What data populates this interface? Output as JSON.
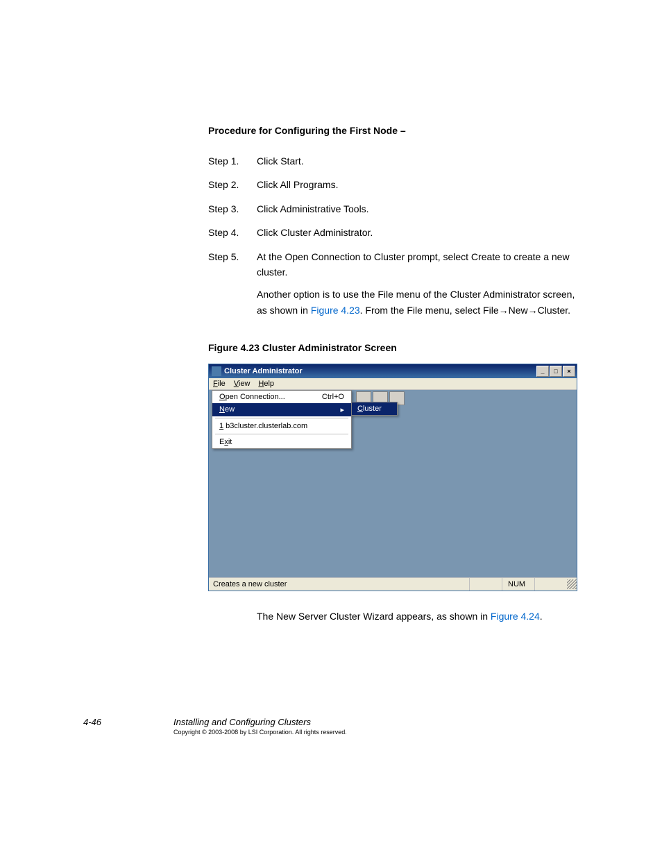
{
  "heading": "Procedure for Configuring the First Node –",
  "steps": [
    {
      "label": "Step 1.",
      "text": "Click Start."
    },
    {
      "label": "Step 2.",
      "text": "Click All Programs."
    },
    {
      "label": "Step 3.",
      "text": "Click Administrative Tools."
    },
    {
      "label": "Step 4.",
      "text": "Click Cluster Administrator."
    },
    {
      "label": "Step 5.",
      "text": "At the Open Connection to Cluster prompt, select Create to create a new cluster."
    }
  ],
  "step5_para2_pre": "Another option is to use the File menu of the Cluster Administrator screen, as shown in ",
  "step5_para2_link": "Figure 4.23",
  "step5_para2_post": ". From the File menu, select File→New→Cluster.",
  "figure_caption": "Figure 4.23   Cluster Administrator Screen",
  "window": {
    "title": "Cluster Administrator",
    "menubar": {
      "file": "File",
      "view": "View",
      "help": "Help"
    },
    "file_menu": {
      "open": "Open Connection...",
      "open_shortcut": "Ctrl+O",
      "new": "New",
      "recent": "1 b3cluster.clusterlab.com",
      "exit": "Exit"
    },
    "submenu": {
      "cluster": "Cluster"
    },
    "statusbar": {
      "text": "Creates a new cluster",
      "num": "NUM"
    }
  },
  "after_figure_pre": "The New Server Cluster Wizard appears, as shown in ",
  "after_figure_link": "Figure 4.24",
  "after_figure_post": ".",
  "footer": {
    "pagenum": "4-46",
    "title": "Installing and Configuring Clusters",
    "copyright": "Copyright © 2003-2008 by LSI Corporation. All rights reserved."
  },
  "colors": {
    "titlebar_start": "#0a246a",
    "titlebar_end": "#3a6ea5",
    "client_bg": "#7a96b0",
    "menu_bg": "#ece9d8",
    "btn_bg": "#d4d0c8",
    "link": "#0066cc"
  }
}
